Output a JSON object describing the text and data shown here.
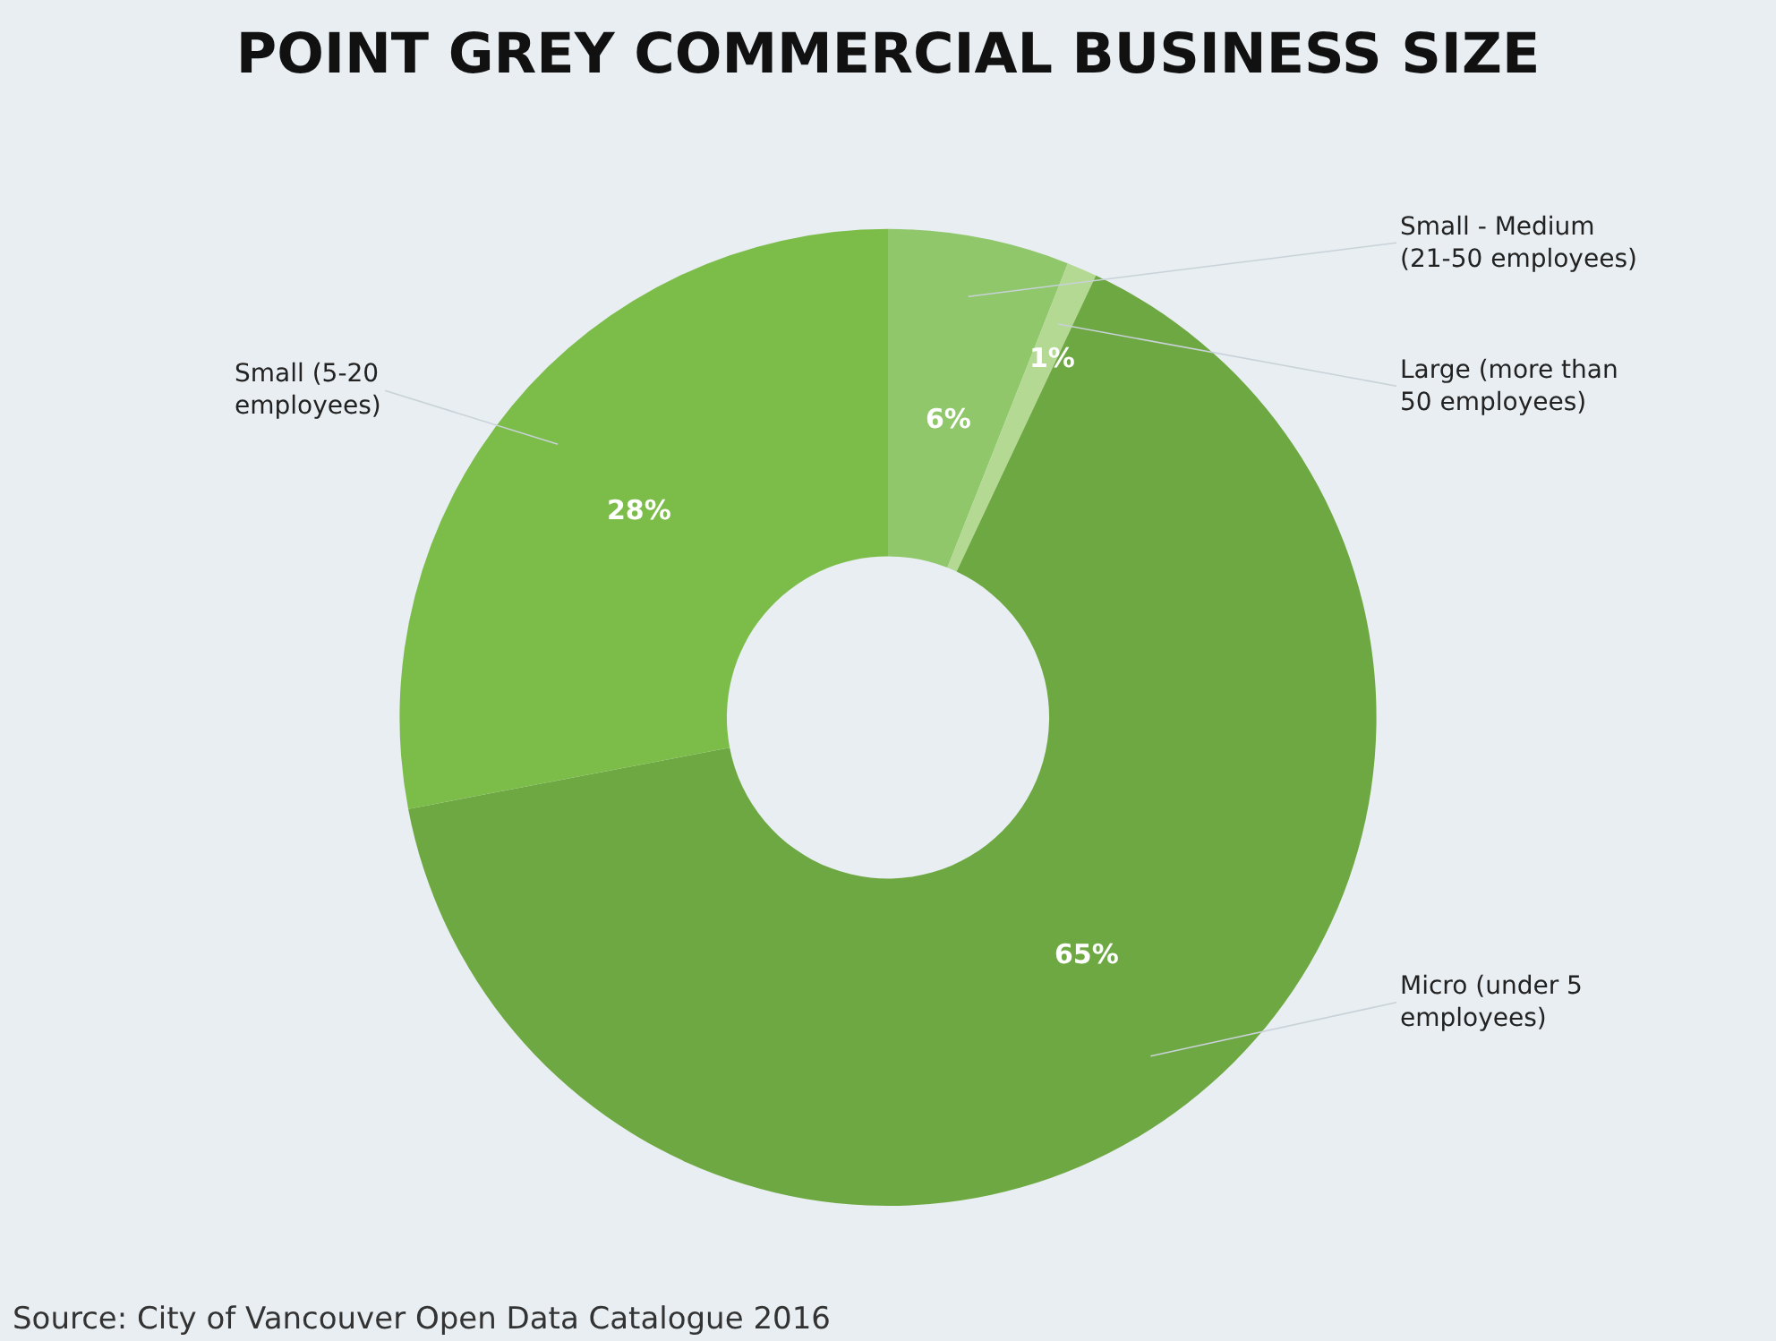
{
  "chart_data": {
    "type": "donut",
    "title": "POINT GREY COMMERCIAL BUSINESS SIZE",
    "categories": [
      "Small - Medium\n(21-50 employees)",
      "Large (more than\n50 employees)",
      "Micro (under 5\nemployees)",
      "Small (5-20\nemployees)"
    ],
    "values": [
      6,
      1,
      65,
      28
    ],
    "colors": [
      "#8fc76a",
      "#b4d992",
      "#6ea842",
      "#7cbd4a"
    ],
    "value_labels": [
      "6%",
      "1%",
      "65%",
      "28%"
    ],
    "annotations": [
      "Source: City of Vancouver Open Data Catalogue 2016"
    ],
    "legend": false
  }
}
